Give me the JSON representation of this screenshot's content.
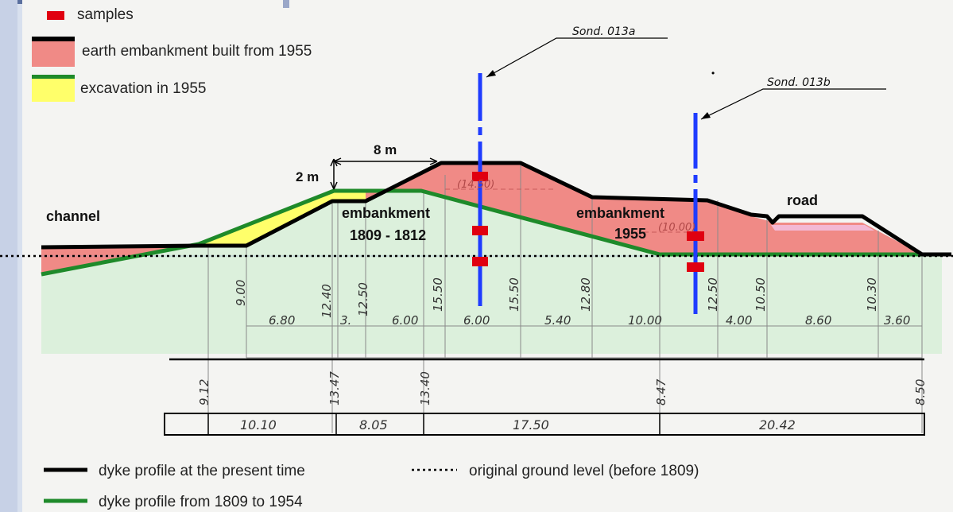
{
  "legend_top": {
    "samples": "samples",
    "earth_embankment": "earth embankment built from 1955",
    "excavation": "excavation in 1955"
  },
  "legend_bottom": {
    "present_profile": "dyke profile at the present time",
    "historic_profile": "dyke profile from 1809 to 1954",
    "ground_level": "original ground level (before 1809)"
  },
  "labels": {
    "channel": "channel",
    "embankment_old_1": "embankment",
    "embankment_old_2": "1809 - 1812",
    "embankment_new_1": "embankment",
    "embankment_new_2": "1955",
    "road": "road",
    "dim_width": "8 m",
    "dim_height": "2 m",
    "sond_a": "Sond. 013a",
    "sond_b": "Sond. 013b",
    "crest_elev": "(14.50)",
    "bench_elev": "(10.00)"
  },
  "vertical_values": [
    "9.00",
    "12.40",
    "12.50",
    "15.50",
    "15.50",
    "12.80",
    "12.50",
    "10.50",
    "10.30"
  ],
  "spacing_values": [
    "6.80",
    "3.",
    "6.00",
    "6.00",
    "5.40",
    "10.00",
    "4.00",
    "8.60",
    "3.60"
  ],
  "base_elevations": [
    "9.12",
    "13.47",
    "13.40",
    "8.47",
    "8.50"
  ],
  "base_distances": [
    "10.10",
    "8.05",
    "17.50",
    "20.42"
  ],
  "colors": {
    "page_bg": "#d8e0ee",
    "paper": "#f4f4f2",
    "ground_fill": "#dcf0dc",
    "embankment_fill": "#f08a86",
    "excavation_fill": "#ffff6a",
    "road_fill": "#f3b8d4",
    "present_line": "#000000",
    "historic_line": "#1e8a2a",
    "sond_line": "#1f3cff",
    "sample": "#e00010"
  }
}
